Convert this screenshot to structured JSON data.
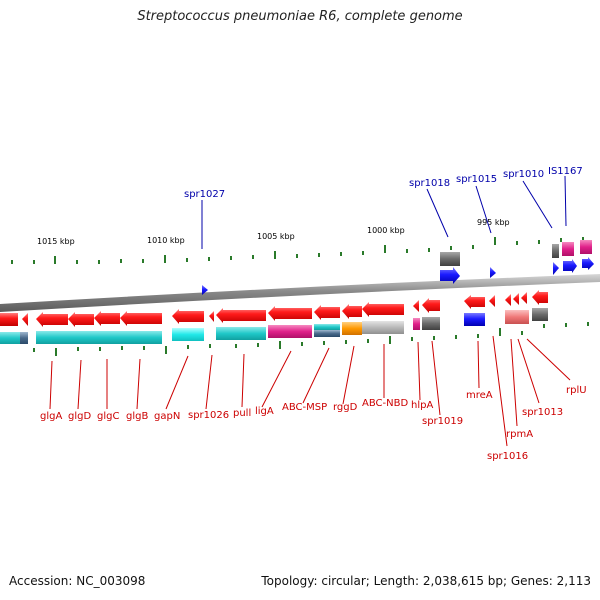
{
  "title": "Streptococcus pneumoniae R6, complete genome",
  "footer": {
    "accession": "Accession: NC_003098",
    "summary": "Topology: circular; Length: 2,038,615 bp; Genes: 2,113"
  },
  "colors": {
    "gene_red": "#ff1a1a",
    "gene_blue": "#1a1aff",
    "label_red": "#cc0000",
    "label_blue": "#0000aa",
    "tick_green": "#2a7a2a",
    "cog_cyan": "#1fc8c8",
    "cog_bright_cyan": "#22e8e8",
    "cog_magenta": "#e0208a",
    "cog_orange": "#ff9900",
    "cog_gray": "#b0b0b0",
    "cog_dark_gray": "#6a6a6a",
    "cog_pink": "#f07878",
    "backbone": "#8a8a8a"
  },
  "scale_labels": [
    "1015 kbp",
    "1010 kbp",
    "1005 kbp",
    "1000 kbp",
    "995 kbp"
  ],
  "top_labels": [
    "spr1027",
    "spr1018",
    "spr1015",
    "spr1010",
    "IS1167"
  ],
  "bottom_labels": [
    "glgA",
    "glgD",
    "glgC",
    "glgB",
    "gapN",
    "spr1026",
    "pull",
    "ligA",
    "ABC-MSP",
    "rggD",
    "ABC-NBD",
    "hlpA",
    "spr1019",
    "mreA",
    "spr1016",
    "rpmA",
    "spr1013",
    "rplU"
  ]
}
